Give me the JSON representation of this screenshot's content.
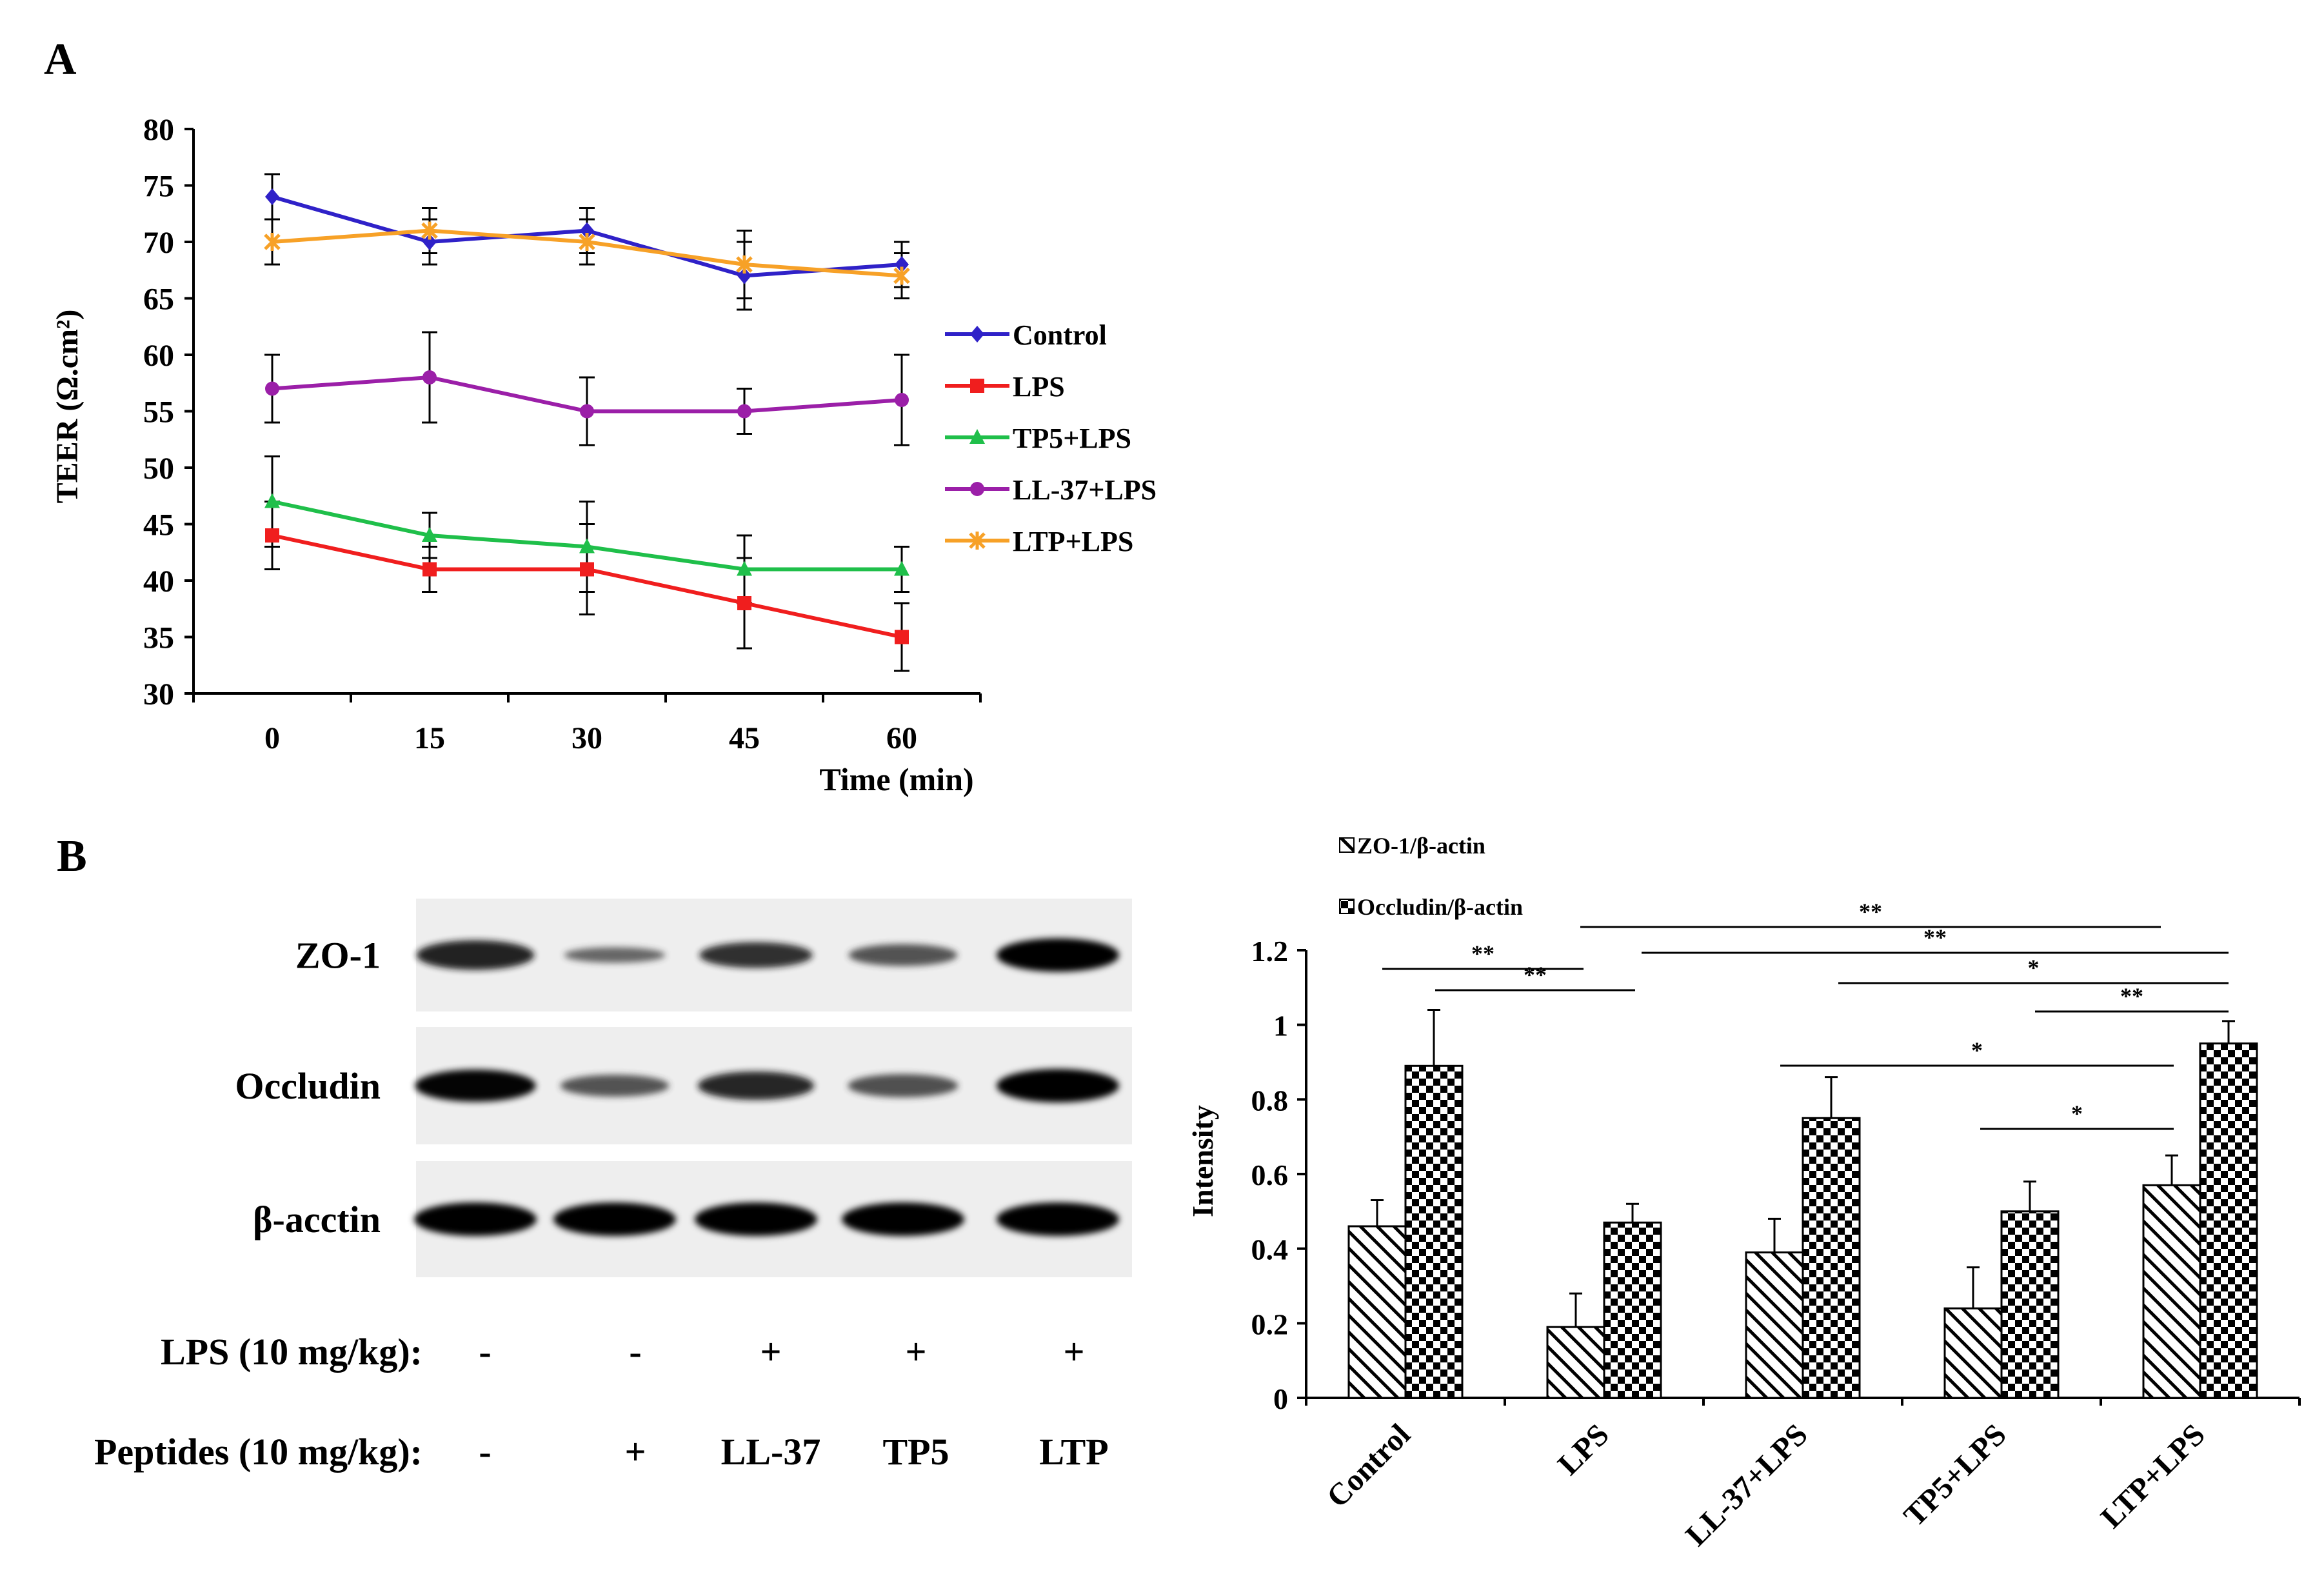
{
  "panel_a_label": "A",
  "panel_b_label": "B",
  "chart_data": [
    {
      "type": "line",
      "xlabel": "Time (min)",
      "ylabel": "TEER (Ω.cm²)",
      "x": [
        0,
        15,
        30,
        45,
        60
      ],
      "ylim": [
        30,
        80
      ],
      "yticks": [
        30,
        35,
        40,
        45,
        50,
        55,
        60,
        65,
        70,
        75,
        80
      ],
      "grid": false,
      "legend": "right",
      "series": [
        {
          "name": "Control",
          "color": "#2f21c8",
          "marker": "diamond",
          "values": [
            74,
            70,
            71,
            67,
            68
          ],
          "errors": [
            2,
            2,
            2,
            3,
            2
          ]
        },
        {
          "name": "LPS",
          "color": "#f01e1e",
          "marker": "square",
          "values": [
            44,
            41,
            41,
            38,
            35
          ],
          "errors": [
            3,
            2,
            4,
            4,
            3
          ]
        },
        {
          "name": "TP5+LPS",
          "color": "#1fbf4a",
          "marker": "triangle",
          "values": [
            47,
            44,
            43,
            41,
            41
          ],
          "errors": [
            4,
            2,
            4,
            3,
            2
          ]
        },
        {
          "name": "LL-37+LPS",
          "color": "#9b1fa8",
          "marker": "circle",
          "values": [
            57,
            58,
            55,
            55,
            56
          ],
          "errors": [
            3,
            4,
            3,
            2,
            4
          ]
        },
        {
          "name": "LTP+LPS",
          "color": "#f7a127",
          "marker": "star",
          "values": [
            70,
            71,
            70,
            68,
            67
          ],
          "errors": [
            2,
            2,
            2,
            3,
            2
          ]
        }
      ]
    },
    {
      "type": "bar",
      "ylabel": "Intensity",
      "ylim": [
        0,
        1.2
      ],
      "yticks": [
        "0",
        "0.2",
        "0.4",
        "0.6",
        "0.8",
        "1",
        "1.2"
      ],
      "categories": [
        "Control",
        "LPS",
        "LL-37+LPS",
        "TP5+LPS",
        "LTP+LPS"
      ],
      "legend": "top-left",
      "series": [
        {
          "name": "ZO-1/β-actin",
          "pattern": "diagonal",
          "values": [
            0.46,
            0.19,
            0.39,
            0.24,
            0.57
          ],
          "errors": [
            0.07,
            0.09,
            0.09,
            0.11,
            0.08
          ]
        },
        {
          "name": "Occludin/β-actin",
          "pattern": "checker",
          "values": [
            0.89,
            0.47,
            0.75,
            0.5,
            0.95
          ],
          "errors": [
            0.15,
            0.05,
            0.11,
            0.08,
            0.06
          ]
        }
      ],
      "significance": [
        {
          "label": "**",
          "from": "Control",
          "to": "LPS"
        },
        {
          "label": "**",
          "from": "Control",
          "to": "LPS"
        },
        {
          "label": "**",
          "from": "LPS",
          "to": "LTP+LPS"
        },
        {
          "label": "**",
          "from": "LPS",
          "to": "LTP+LPS"
        },
        {
          "label": "*",
          "from": "LL-37+LPS",
          "to": "LTP+LPS"
        },
        {
          "label": "**",
          "from": "TP5+LPS",
          "to": "LTP+LPS"
        },
        {
          "label": "*",
          "from": "LL-37+LPS",
          "to": "LTP+LPS"
        },
        {
          "label": "*",
          "from": "TP5+LPS",
          "to": "LTP+LPS"
        }
      ]
    }
  ],
  "blot": {
    "rows": [
      {
        "label": "ZO-1",
        "intensities": [
          0.85,
          0.3,
          0.7,
          0.55,
          1.0
        ]
      },
      {
        "label": "Occludin",
        "intensities": [
          0.95,
          0.55,
          0.8,
          0.6,
          1.0
        ]
      },
      {
        "label": "β-acctin",
        "intensities": [
          1.0,
          1.0,
          1.0,
          1.0,
          1.0
        ]
      }
    ],
    "conditions": [
      {
        "label": "LPS (10 mg/kg):",
        "values": [
          "-",
          "-",
          "+",
          "+",
          "+"
        ]
      },
      {
        "label": "Peptides (10 mg/kg):",
        "values": [
          "-",
          "+",
          "LL-37",
          "TP5",
          "LTP"
        ]
      }
    ]
  }
}
